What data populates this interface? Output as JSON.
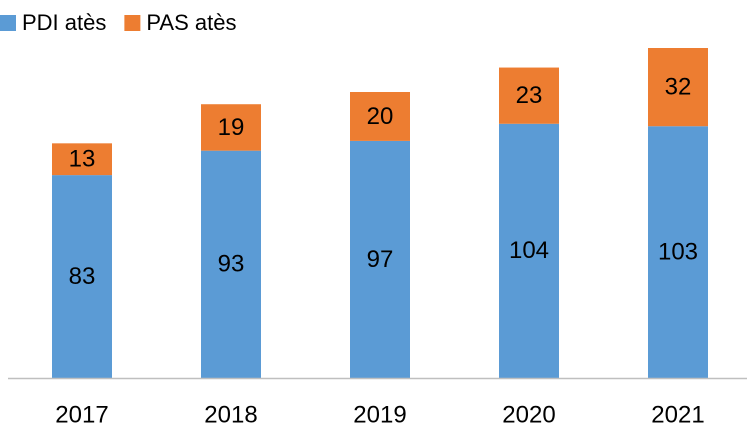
{
  "chart_data": {
    "type": "stacked_bar",
    "categories": [
      "2017",
      "2018",
      "2019",
      "2020",
      "2021"
    ],
    "series": [
      {
        "name": "PDI atès",
        "color": "#5b9bd5",
        "values": [
          83,
          93,
          97,
          104,
          103
        ]
      },
      {
        "name": "PAS atès",
        "color": "#ed7d31",
        "values": [
          13,
          19,
          20,
          23,
          32
        ]
      }
    ],
    "ylim": [
      0,
      135
    ]
  }
}
